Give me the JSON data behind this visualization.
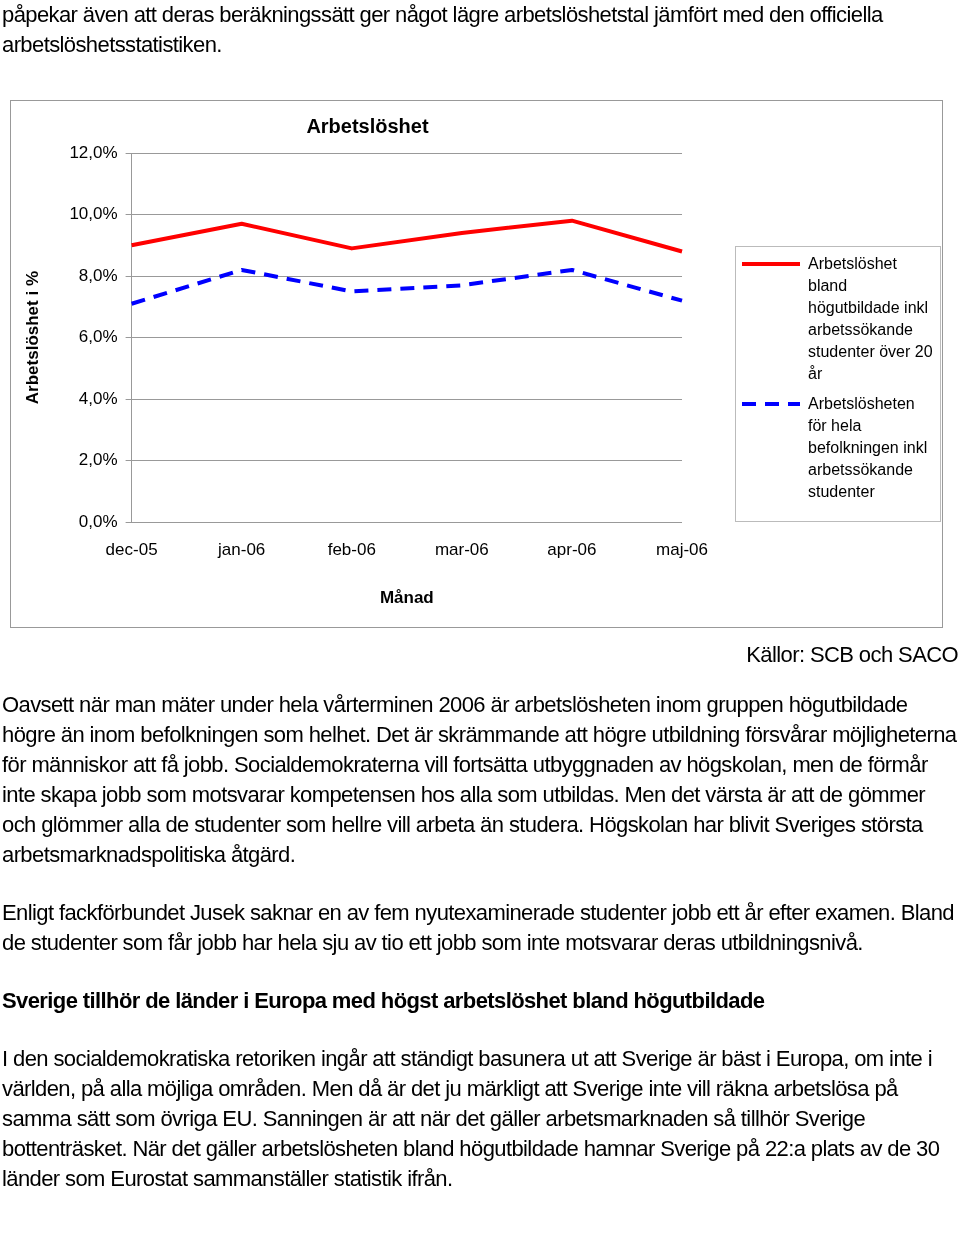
{
  "chart_data": {
    "type": "line",
    "title": "Arbetslöshet",
    "xlabel": "Månad",
    "ylabel": "Arbetslöshet i %",
    "categories": [
      "dec-05",
      "jan-06",
      "feb-06",
      "mar-06",
      "apr-06",
      "maj-06"
    ],
    "series": [
      {
        "name": "Arbetslöshet bland högutbildade inkl arbetssökande studenter över 20 år",
        "color": "#ff0000",
        "line_style": "solid",
        "values": [
          9.0,
          9.7,
          8.9,
          9.4,
          9.8,
          8.8
        ]
      },
      {
        "name": "Arbetslösheten för hela befolkningen inkl arbetssökande studenter",
        "color": "#0000ff",
        "line_style": "dashed",
        "values": [
          7.1,
          8.2,
          7.5,
          7.7,
          8.2,
          7.2
        ]
      }
    ],
    "ylim": [
      0,
      12
    ],
    "yticks": [
      {
        "value": 0,
        "label": "0,0%"
      },
      {
        "value": 2,
        "label": "2,0%"
      },
      {
        "value": 4,
        "label": "4,0%"
      },
      {
        "value": 6,
        "label": "6,0%"
      },
      {
        "value": 8,
        "label": "8,0%"
      },
      {
        "value": 10,
        "label": "10,0%"
      },
      {
        "value": 12,
        "label": "12,0%"
      }
    ],
    "grid": "y",
    "legend": "right",
    "marker": "none",
    "annotations": [
      "påpekar även att deras beräkningssätt ger något lägre arbetslöshetstal jämfört med den officiella arbetslöshetsstatistiken.",
      "Källor: SCB och SACO",
      "Oavsett när man mäter under hela vårterminen 2006 är arbetslösheten inom gruppen högutbildade högre än inom befolkningen som helhet. Det är skrämmande att högre utbildning försvårar möjligheterna för människor att få jobb. Socialdemokraterna vill fortsätta utbyggnaden av högskolan, men de förmår inte skapa jobb som motsvarar kompetensen hos alla som utbildas. Men det värsta är att de gömmer och glömmer alla de studenter som hellre vill arbeta än studera. Högskolan har blivit Sveriges största arbetsmarknadspolitiska åtgärd.",
      "Enligt fackförbundet Jusek saknar en av fem nyutexaminerade studenter jobb ett år efter examen. Bland de studenter som får jobb har hela sju av tio ett jobb som inte motsvarar deras utbildningsnivå.",
      "Sverige tillhör de länder i Europa med högst arbetslöshet bland högutbildade",
      "I den socialdemokratiska retoriken ingår att ständigt basunera ut att Sverige är bäst i Europa, om inte i världen, på alla möjliga områden. Men då är det ju märkligt att Sverige inte vill räkna arbetslösa på samma sätt som övriga EU. Sanningen är att när det gäller arbetsmarknaden så tillhör Sverige bottenträsket. När det gäller arbetslösheten bland högutbildade hamnar Sverige på 22:a plats av de 30 länder som Eurostat sammanställer statistik ifrån."
    ]
  }
}
